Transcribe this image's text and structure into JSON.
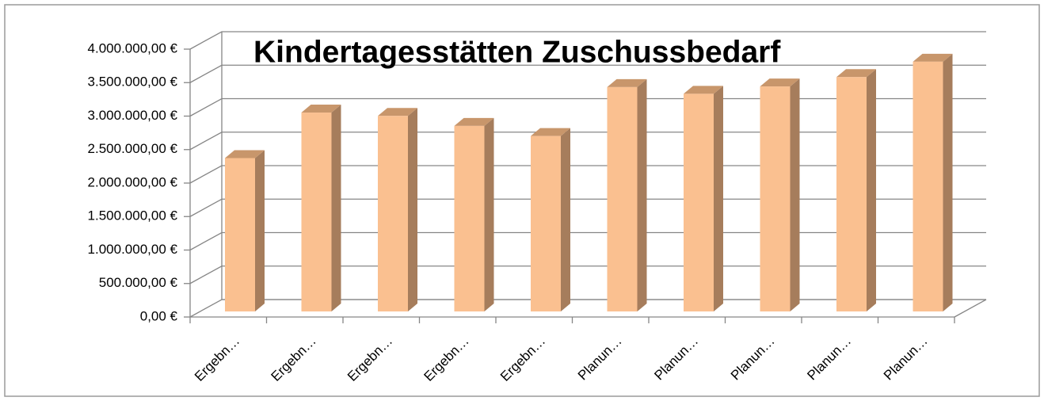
{
  "chart_data": {
    "type": "bar3d",
    "title": "Kindertagesstätten Zuschussbedarf",
    "categories": [
      "Ergebn…",
      "Ergebn…",
      "Ergebn…",
      "Ergebn…",
      "Ergebn…",
      "Planun…",
      "Planun…",
      "Planun…",
      "Planun…",
      "Planun…"
    ],
    "values": [
      2290000,
      2970000,
      2920000,
      2770000,
      2620000,
      3350000,
      3250000,
      3360000,
      3500000,
      3730000
    ],
    "color": "#fac090",
    "ylim": [
      0,
      4000000
    ],
    "yticks": [
      {
        "value": 0,
        "label": "0,00 €"
      },
      {
        "value": 500000,
        "label": "500.000,00 €"
      },
      {
        "value": 1000000,
        "label": "1.000.000,00 €"
      },
      {
        "value": 1500000,
        "label": "1.500.000,00 €"
      },
      {
        "value": 2000000,
        "label": "2.000.000,00 €"
      },
      {
        "value": 2500000,
        "label": "2.500.000,00 €"
      },
      {
        "value": 3000000,
        "label": "3.000.000,00 €"
      },
      {
        "value": 3500000,
        "label": "3.500.000,00 €"
      },
      {
        "value": 4000000,
        "label": "4.000.000,00 €"
      }
    ],
    "grid": true
  }
}
